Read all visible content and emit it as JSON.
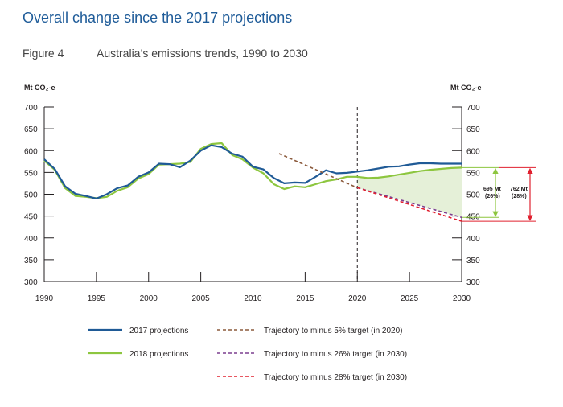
{
  "header": {
    "page_title": "Overall change since the 2017 projections",
    "figure_label": "Figure 4",
    "figure_title": "Australia’s emissions trends, 1990 to 2030"
  },
  "colors": {
    "title": "#1f5c99",
    "proj2017": "#1f5a96",
    "proj2018": "#8dc63f",
    "traj5": "#8b5a3c",
    "traj26": "#7b3f8f",
    "traj28": "#e0202f",
    "gap_fill": "#e5f0d8"
  },
  "chart_data": {
    "type": "line",
    "ylabel_left": "Mt CO₂-e",
    "ylabel_right": "Mt CO₂-e",
    "xlim": [
      1990,
      2030
    ],
    "ylim": [
      300,
      700
    ],
    "xticks": [
      "1990",
      "1995",
      "2000",
      "2005",
      "2010",
      "2015",
      "2020",
      "2025",
      "2030"
    ],
    "yticks": [
      "300",
      "350",
      "400",
      "450",
      "500",
      "550",
      "600",
      "650",
      "700"
    ],
    "vertical_marker_year": 2020,
    "series": [
      {
        "name": "2017 projections",
        "key": "proj2017",
        "x": [
          1990,
          1991,
          1992,
          1993,
          1994,
          1995,
          1996,
          1997,
          1998,
          1999,
          2000,
          2001,
          2002,
          2003,
          2004,
          2005,
          2006,
          2007,
          2008,
          2009,
          2010,
          2011,
          2012,
          2013,
          2014,
          2015,
          2016,
          2017,
          2018,
          2019,
          2020,
          2021,
          2022,
          2023,
          2024,
          2025,
          2026,
          2027,
          2028,
          2029,
          2030
        ],
        "y": [
          580,
          558,
          518,
          501,
          496,
          490,
          500,
          514,
          520,
          540,
          550,
          570,
          569,
          562,
          577,
          600,
          612,
          608,
          593,
          586,
          563,
          557,
          537,
          525,
          527,
          526,
          540,
          555,
          548,
          549,
          552,
          555,
          559,
          563,
          564,
          568,
          571,
          571,
          570,
          570,
          570
        ]
      },
      {
        "name": "2018 projections",
        "key": "proj2018",
        "x": [
          1990,
          1991,
          1992,
          1993,
          1994,
          1995,
          1996,
          1997,
          1998,
          1999,
          2000,
          2001,
          2002,
          2003,
          2004,
          2005,
          2006,
          2007,
          2008,
          2009,
          2010,
          2011,
          2012,
          2013,
          2014,
          2015,
          2016,
          2017,
          2018,
          2019,
          2020,
          2021,
          2022,
          2023,
          2024,
          2025,
          2026,
          2027,
          2028,
          2029,
          2030
        ],
        "y": [
          577,
          556,
          514,
          496,
          494,
          491,
          494,
          508,
          516,
          536,
          546,
          568,
          569,
          570,
          574,
          604,
          615,
          617,
          590,
          580,
          561,
          548,
          523,
          512,
          518,
          516,
          523,
          530,
          534,
          540,
          540,
          537,
          538,
          541,
          545,
          549,
          553,
          556,
          558,
          560,
          561
        ]
      },
      {
        "name": "Trajectory to minus 5% target (in 2020)",
        "key": "traj5",
        "x": [
          2012.5,
          2020
        ],
        "y": [
          593,
          515
        ]
      },
      {
        "name": "Trajectory to minus 26% target (in 2030)",
        "key": "traj26",
        "x": [
          2020,
          2030
        ],
        "y": [
          515,
          447
        ]
      },
      {
        "name": "Trajectory to minus 28% target (in 2030)",
        "key": "traj28",
        "x": [
          2020,
          2030
        ],
        "y": [
          515,
          438
        ]
      }
    ],
    "annotations": {
      "gap26_total": "695 Mt",
      "gap26_pct": "(26%)",
      "gap28_total": "762 Mt",
      "gap28_pct": "(28%)"
    }
  }
}
